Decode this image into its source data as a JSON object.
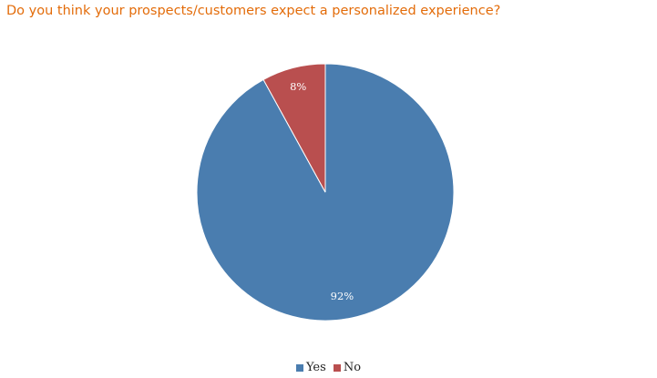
{
  "chart_data": {
    "type": "pie",
    "title": "Do you think your prospects/customers expect a personalized experience?",
    "categories": [
      "Yes",
      "No"
    ],
    "values": [
      92,
      8
    ],
    "data_labels": [
      "92%",
      "8%"
    ],
    "colors": [
      "#4A7DAF",
      "#B94F4F"
    ],
    "legend_placement": "bottom"
  }
}
